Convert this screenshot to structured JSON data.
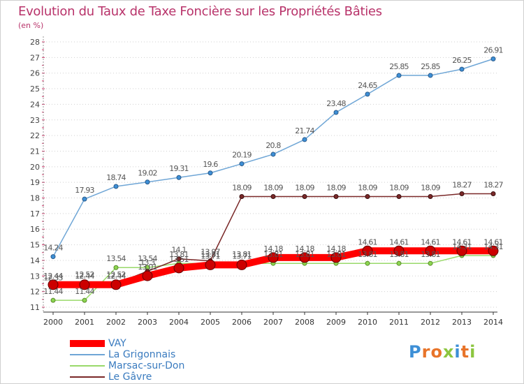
{
  "header": {
    "title": "Evolution du Taux de Taxe Foncière sur les Propriétés Bâties",
    "unit": "(en %)"
  },
  "logo": {
    "text": "Proxiti",
    "letter_colors": [
      "#3d8fd6",
      "#e8742a",
      "#e8742a",
      "#8cc63f",
      "#3d8fd6",
      "#e8742a",
      "#8cc63f"
    ]
  },
  "chart_data": {
    "type": "line",
    "x": [
      2000,
      2001,
      2002,
      2003,
      2004,
      2005,
      2006,
      2007,
      2008,
      2009,
      2010,
      2011,
      2012,
      2013,
      2014
    ],
    "ylim": [
      11,
      28
    ],
    "yticks": [
      11,
      12,
      13,
      14,
      15,
      16,
      17,
      18,
      19,
      20,
      21,
      22,
      23,
      24,
      25,
      26,
      27,
      28
    ],
    "grid": "horizontal-dotted",
    "legend": "bottom-left",
    "series": [
      {
        "name": "VAY",
        "color": "#ff0000",
        "values": [
          12.44,
          12.44,
          12.44,
          13.01,
          13.51,
          13.71,
          13.71,
          14.18,
          14.18,
          14.18,
          14.61,
          14.61,
          14.61,
          14.61,
          14.61
        ],
        "labels": [
          "12.44",
          "12.44",
          "12.44",
          "13.01",
          "13.51",
          "13.71",
          "13.71",
          "14.18",
          "14.18",
          "14.18",
          "14.61",
          "14.61",
          "14.61",
          "14.61",
          "14.61"
        ]
      },
      {
        "name": "La Grigonnais",
        "color": "#6fa6d6",
        "values": [
          14.24,
          17.93,
          18.74,
          19.02,
          19.31,
          19.6,
          20.19,
          20.8,
          21.74,
          23.48,
          24.65,
          25.85,
          25.85,
          26.25,
          26.91
        ],
        "labels": [
          "14.24",
          "17.93",
          "18.74",
          "19.02",
          "19.31",
          "19.6",
          "20.19",
          "20.8",
          "21.74",
          "23.48",
          "24.65",
          "25.85",
          "25.85",
          "26.25",
          "26.91"
        ]
      },
      {
        "name": "Marsac-sur-Don",
        "color": "#99d96a",
        "values": [
          11.44,
          11.44,
          13.54,
          13.54,
          13.81,
          13.81,
          13.81,
          13.81,
          13.81,
          13.81,
          13.81,
          13.81,
          13.81,
          14.31,
          14.31
        ],
        "labels": [
          "11.44",
          "11.44",
          "13.54",
          "13.54",
          "13.81",
          "13.81",
          "13.81",
          "13.81",
          "13.81",
          "13.81",
          "13.81",
          "13.81",
          "13.81",
          "14.31",
          "14.31"
        ]
      },
      {
        "name": "Le Gâvre",
        "color": "#7a2828",
        "values": [
          12.33,
          12.52,
          12.52,
          13.3,
          14.1,
          13.97,
          18.09,
          18.09,
          18.09,
          18.09,
          18.09,
          18.09,
          18.09,
          18.27,
          18.27
        ],
        "labels": [
          "12.33",
          "12.52",
          "12.52",
          "13.3",
          "14.1",
          "13.97",
          "18.09",
          "18.09",
          "18.09",
          "18.09",
          "18.09",
          "18.09",
          "18.09",
          "18.27",
          "18.27"
        ]
      }
    ]
  }
}
